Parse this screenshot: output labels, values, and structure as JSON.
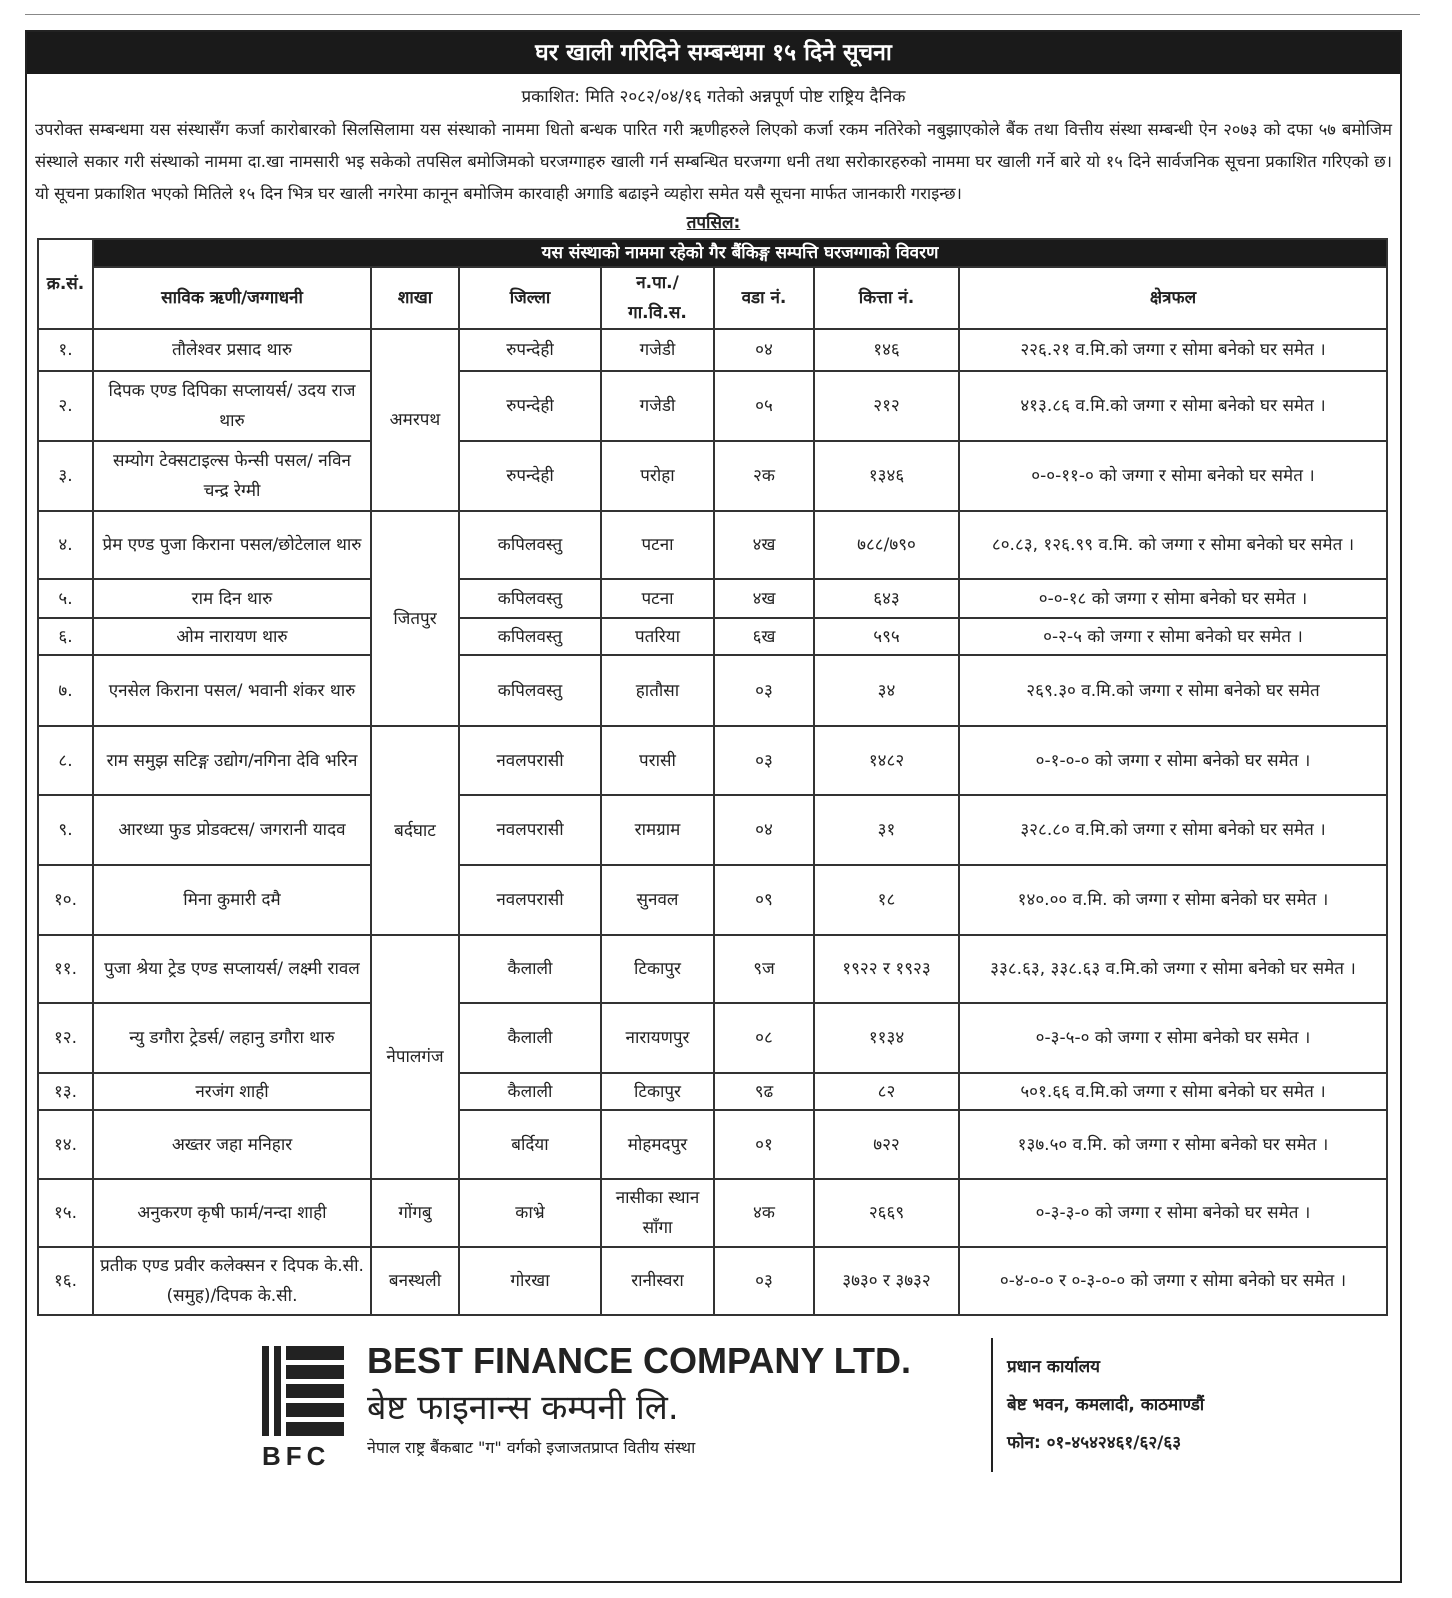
{
  "title": "घर खाली गरिदिने सम्बन्धमा १५ दिने सूचना",
  "published": "प्रकाशित: मिति २०८२/०४/१६ गतेको अन्नपूर्ण पोष्ट राष्ट्रिय दैनिक",
  "paragraph": "उपरोक्त सम्बन्धमा यस संस्थासँग कर्जा कारोबारको सिलसिलामा यस संस्थाको नाममा धितो बन्धक पारित गरी ऋणीहरुले लिएको कर्जा रकम नतिरेको नबुझाएकोले बैंक तथा वित्तीय संस्था सम्बन्धी ऐन २०७३ को दफा ५७ बमोजिम संस्थाले सकार गरी संस्थाको नाममा दा.खा नामसारी भइ सकेको तपसिल बमोजिमको घरजग्गाहरु खाली गर्न सम्बन्धित घरजग्गा धनी तथा सरोकारहरुको नाममा घर खाली गर्ने बारे यो १५ दिने सार्वजनिक सूचना प्रकाशित गरिएको छ। यो सूचना प्रकाशित भएको मितिले १५ दिन भित्र घर खाली नगरेमा कानून बमोजिम कारवाही अगाडि बढाइने व्यहोरा समेत यसै सूचना मार्फत जानकारी गराइन्छ।",
  "tapsil": "तपसिल:",
  "table": {
    "band": "यस संस्थाको नाममा रहेको गैर बैंकिङ्ग सम्पत्ति घरजग्गाको विवरण",
    "headers": [
      "क्र.सं.",
      "साविक ऋणी/जग्गाधनी",
      "शाखा",
      "जिल्ला",
      "न.पा./ गा.वि.स.",
      "वडा नं.",
      "कित्ता नं.",
      "क्षेत्रफल"
    ],
    "branches": [
      "अमरपथ",
      "जितपुर",
      "बर्दघाट",
      "नेपालगंज",
      "गोंगबु",
      "बनस्थली"
    ],
    "rows": [
      [
        "१.",
        "तौलेश्वर प्रसाद थारु",
        "रुपन्देही",
        "गजेडी",
        "०४",
        "१४६",
        "२२६.२१ व.मि.को जग्गा र सोमा बनेको घर समेत ।"
      ],
      [
        "२.",
        "दिपक एण्ड दिपिका सप्लायर्स/ उदय राज थारु",
        "रुपन्देही",
        "गजेडी",
        "०५",
        "२१२",
        "४१३.८६ व.मि.को जग्गा र सोमा बनेको घर समेत ।"
      ],
      [
        "३.",
        "सम्योग टेक्सटाइल्स फेन्सी पसल/ नविन चन्द्र रेग्मी",
        "रुपन्देही",
        "परोहा",
        "२क",
        "१३४६",
        "०-०-११-० को जग्गा र सोमा बनेको घर समेत ।"
      ],
      [
        "४.",
        "प्रेम एण्ड पुजा किराना पसल/छोटेलाल थारु",
        "कपिलवस्तु",
        "पटना",
        "४ख",
        "७८८/७९०",
        "८०.८३, १२६.९९ व.मि. को जग्गा र सोमा बनेको घर समेत ।"
      ],
      [
        "५.",
        "राम दिन थारु",
        "कपिलवस्तु",
        "पटना",
        "४ख",
        "६४३",
        "०-०-१८ को जग्गा र सोमा बनेको घर समेत ।"
      ],
      [
        "६.",
        "ओम नारायण थारु",
        "कपिलवस्तु",
        "पतरिया",
        "६ख",
        "५९५",
        "०-२-५ को जग्गा र सोमा बनेको घर समेत ।"
      ],
      [
        "७.",
        "एनसेल किराना पसल/ भवानी शंकर थारु",
        "कपिलवस्तु",
        "हातौसा",
        "०३",
        "३४",
        "२६९.३० व.मि.को जग्गा र सोमा बनेको घर समेत"
      ],
      [
        "८.",
        "राम समुझ सटिङ्ग उद्योग/नगिना देवि भरिन",
        "नवलपरासी",
        "परासी",
        "०३",
        "१४८२",
        "०-१-०-० को जग्गा र सोमा बनेको घर समेत ।"
      ],
      [
        "९.",
        "आरध्या फुड प्रोडक्टस/ जगरानी यादव",
        "नवलपरासी",
        "रामग्राम",
        "०४",
        "३१",
        "३२८.८० व.मि.को जग्गा र सोमा बनेको घर समेत ।"
      ],
      [
        "१०.",
        "मिना कुमारी दमै",
        "नवलपरासी",
        "सुनवल",
        "०९",
        "१८",
        "१४०.०० व.मि. को जग्गा र सोमा बनेको घर समेत ।"
      ],
      [
        "११.",
        "पुजा श्रेया ट्रेड एण्ड सप्लायर्स/ लक्ष्मी रावल",
        "कैलाली",
        "टिकापुर",
        "९ज",
        "१९२२ र १९२३",
        "३३८.६३, ३३८.६३ व.मि.को जग्गा र सोमा बनेको घर समेत ।"
      ],
      [
        "१२.",
        "न्यु डगौरा ट्रेडर्स/ लहानु डगौरा थारु",
        "कैलाली",
        "नारायणपुर",
        "०८",
        "११३४",
        "०-३-५-० को जग्गा र सोमा बनेको घर समेत ।"
      ],
      [
        "१३.",
        "नरजंग शाही",
        "कैलाली",
        "टिकापुर",
        "९ढ",
        "८२",
        "५०१.६६ व.मि.को जग्गा र सोमा बनेको घर समेत ।"
      ],
      [
        "१४.",
        "अख्तर जहा मनिहार",
        "बर्दिया",
        "मोहमदपुर",
        "०१",
        "७२२",
        "१३७.५० व.मि. को जग्गा र सोमा बनेको घर समेत ।"
      ],
      [
        "१५.",
        "अनुकरण कृषी फार्म/नन्दा शाही",
        "काभ्रे",
        "नासीका स्थान साँगा",
        "४क",
        "२६६९",
        "०-३-३-० को जग्गा र सोमा बनेको घर समेत ।"
      ],
      [
        "१६.",
        "प्रतीक एण्ड प्रवीर कलेक्सन र दिपक के.सी.(समुह)/दिपक के.सी.",
        "गोरखा",
        "रानीस्वरा",
        "०३",
        "३७३० र ३७३२",
        "०-४-०-० र ०-३-०-० को जग्गा र सोमा बनेको घर समेत ।"
      ]
    ]
  },
  "footer": {
    "logo_text": "BFC",
    "company_en": "BEST FINANCE COMPANY LTD.",
    "company_np": "बेष्ट फाइनान्स कम्पनी लि.",
    "license": "नेपाल राष्ट्र बैंकबाट \"ग\" वर्गको इजाजतप्राप्त वितीय संस्था",
    "office": "प्रधान कार्यालय",
    "address": "बेष्ट भवन, कमलादी, काठमाण्डौं",
    "phone": "फोन: ०१-४५४२४६१/६२/६३"
  }
}
